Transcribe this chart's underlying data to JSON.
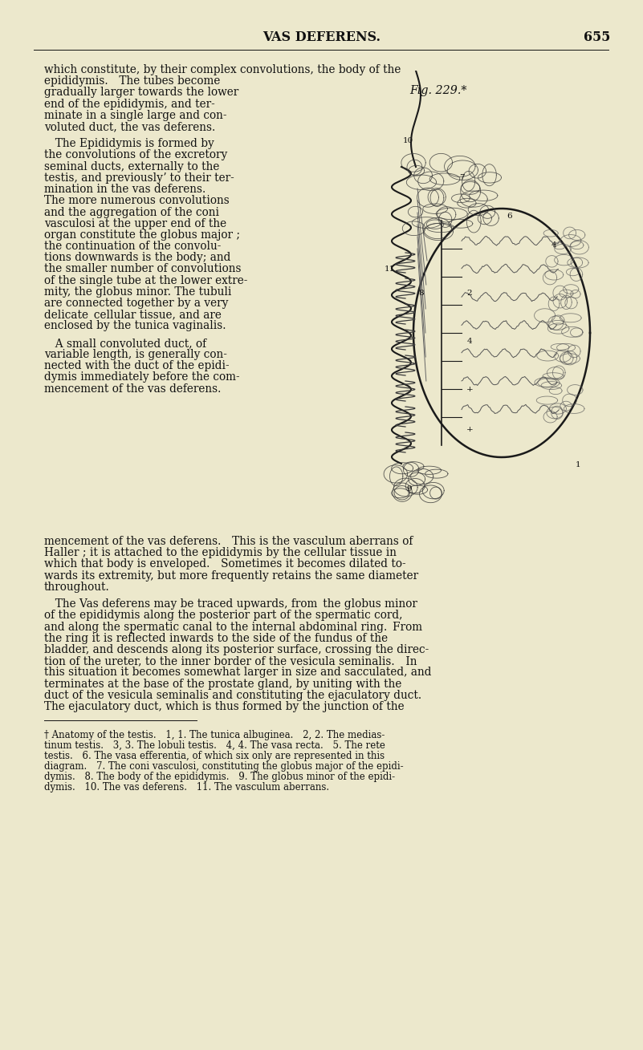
{
  "bg_color": "#ece8cc",
  "text_color": "#111111",
  "header": "VAS DEFERENS.",
  "page_num": "655",
  "fig_caption": "Fig. 229.*",
  "body_font_size": 9.8,
  "footnote_font_size": 8.5,
  "header_font_size": 11.5,
  "dpi": 100,
  "fig_w": 8.01,
  "fig_h": 13.09,
  "left_col_lines": [
    "which constitute, by their complex convolutions, the body of the",
    "epididymis.  The tubes become",
    "gradually larger towards the lower",
    "end of the epididymis, and ter-",
    "minate in a single large and con-",
    "voluted duct, the vas deferens.",
    "",
    "  The Epididymis is formed by",
    "the convolutions of the excretory",
    "seminal ducts, externally to the",
    "testis, and previouslyʼ to their ter-",
    "mination in the vas deferens.",
    "The more numerous convolutions",
    "and the aggregation of the coni",
    "vasculosi at the upper end of the",
    "organ constitute the globus major ;",
    "the continuation of the convolu-",
    "tions downwards is the body; and",
    "the smaller number of convolutions",
    "of the single tube at the lower extre-",
    "mity, the globus minor. The tubuli",
    "are connected together by a very",
    "delicate cellular tissue, and are",
    "enclosed by the tunica vaginalis.",
    "",
    "  A small convoluted duct, of",
    "variable length, is generally con-",
    "nected with the duct of the epidi-",
    "dymis immediately before the com-",
    "mencement of the vas deferens."
  ],
  "full_width_lines": [
    "mencement of the vas deferens.  This is the vasculum aberrans of",
    "Haller ; it is attached to the epididymis by the cellular tissue in",
    "which that body is enveloped.  Sometimes it becomes dilated to-",
    "wards its extremity, but more frequently retains the same diameter",
    "throughout.",
    "",
    "  The Vas deferens may be traced upwards, from the globus minor",
    "of the epididymis along the posterior part of the spermatic cord,",
    "and along the spermatic canal to the internal abdominal ring. From",
    "the ring it is reflected inwards to the side of the fundus of the",
    "bladder, and descends along its posterior surface, crossing the direc-",
    "tion of the ureter, to the inner border of the vesicula seminalis.  In",
    "this situation it becomes somewhat larger in size and sacculated, and",
    "terminates at the base of the prostate gland, by uniting with the",
    "duct of the vesicula seminalis and constituting the ejaculatory duct.",
    "The ejaculatory duct, which is thus formed by the junction of the"
  ],
  "footnote_lines": [
    "† Anatomy of the testis.  1, 1. The tunica albuginea.  2, 2. The medias-",
    "tinum testis.  3, 3. The lobuli testis.  4, 4. The vasa recta.  5. The rete",
    "testis.  6. The vasa efferentia, of which six only are represented in this",
    "diagram.  7. The coni vasculosi, constituting the globus major of the epidi-",
    "dymis.  8. The body of the epididymis.  9. The globus minor of the epidi-",
    "dymis.  10. The vas deferens.  11. The vasculum aberrans."
  ]
}
